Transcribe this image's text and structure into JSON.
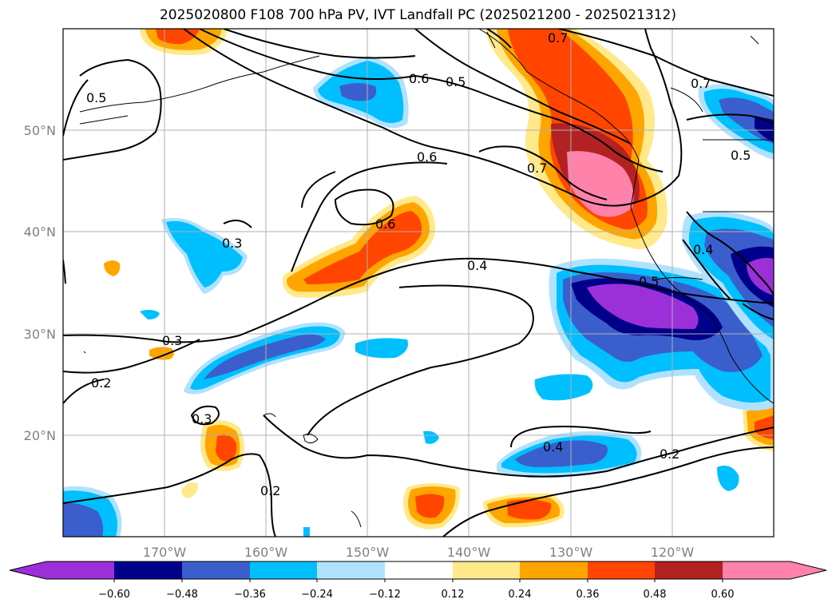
{
  "title": "2025020800 F108 700 hPa PV, IVT Landfall PC (2025021200 - 2025021312)",
  "map": {
    "lon_labels": [
      "170°W",
      "160°W",
      "150°W",
      "140°W",
      "130°W",
      "120°W"
    ],
    "lat_labels": [
      "50°N",
      "40°N",
      "30°N",
      "20°N"
    ],
    "contour_labels": [
      "0.7",
      "0.5",
      "0.6",
      "0.5",
      "0.6",
      "0.7",
      "0.7",
      "0.5",
      "0.6",
      "0.3",
      "0.4",
      "0.4",
      "0.5",
      "0.3",
      "0.2",
      "0.3",
      "0.2",
      "0.4",
      "0.2"
    ]
  },
  "colorbar": {
    "ticks": [
      "−0.60",
      "−0.48",
      "−0.36",
      "−0.24",
      "−0.12",
      "0.12",
      "0.24",
      "0.36",
      "0.48",
      "0.60"
    ],
    "colors": [
      "#9b30d9",
      "#00008b",
      "#3a5fcd",
      "#00bfff",
      "#b0e2ff",
      "#ffffff",
      "#ffe98a",
      "#ffa500",
      "#ff4500",
      "#b22222",
      "#ff82ab"
    ]
  }
}
